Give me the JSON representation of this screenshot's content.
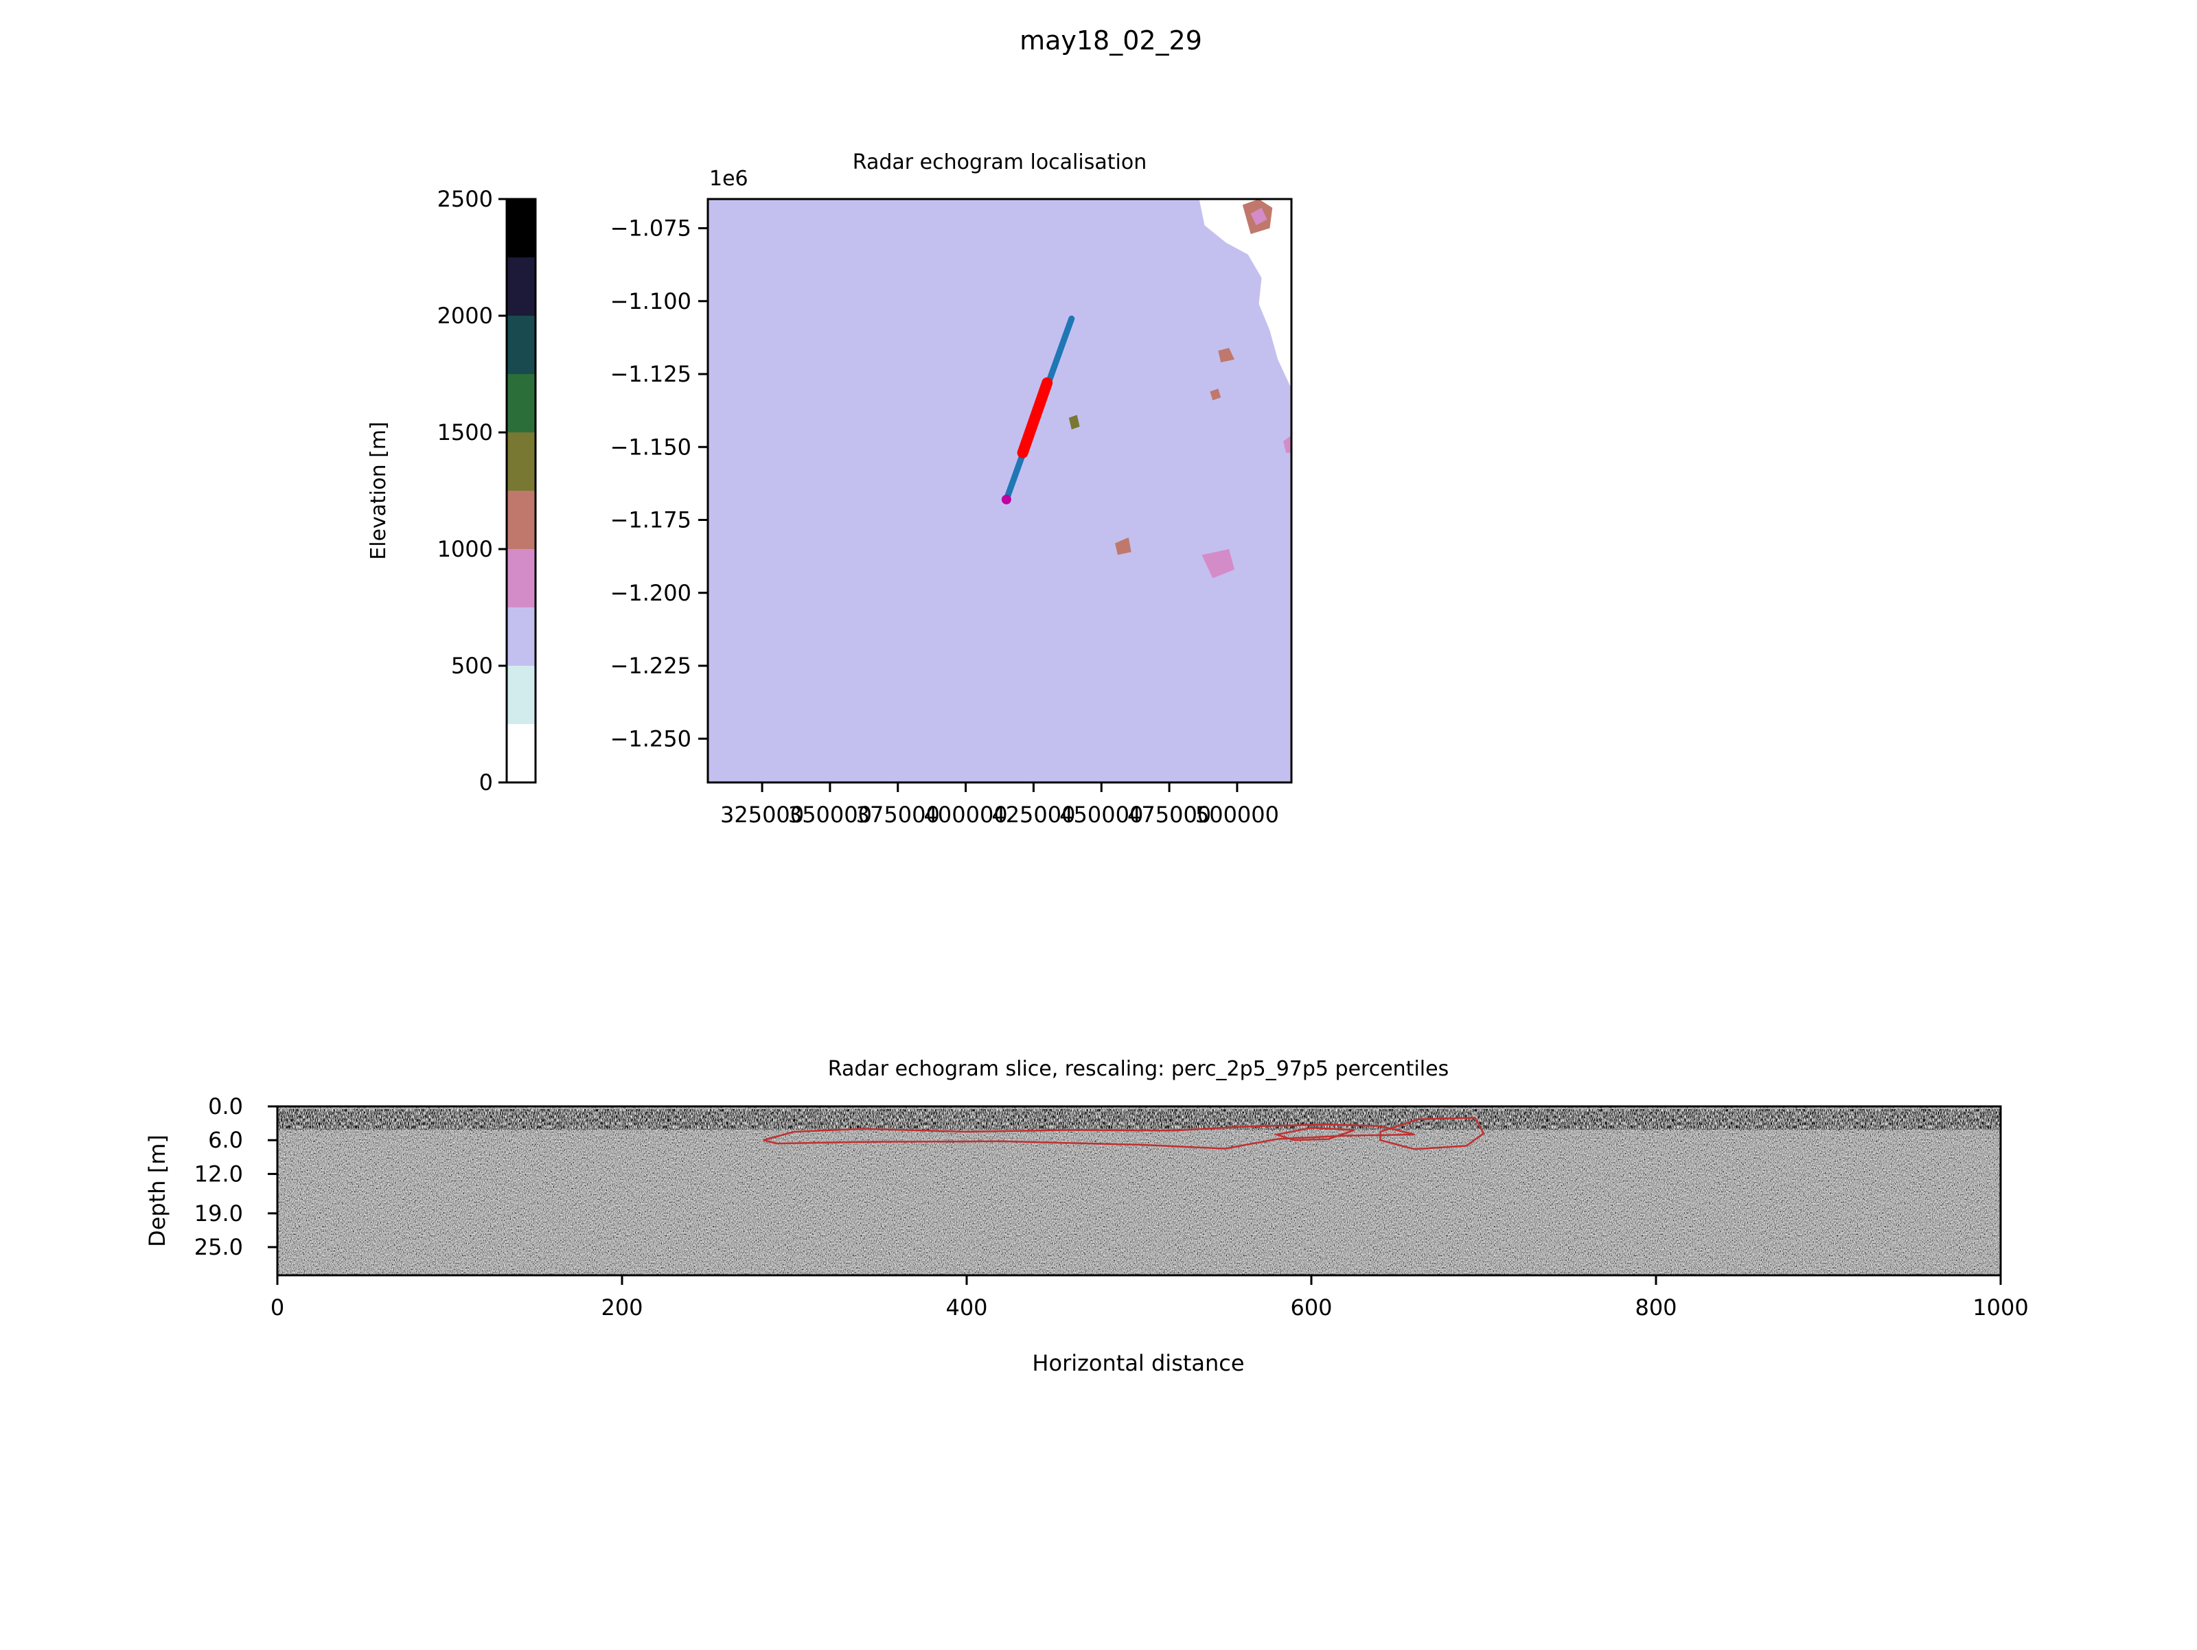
{
  "figure": {
    "title": "may18_02_29"
  },
  "colors": {
    "axis": "#000000",
    "track_line": "#1f77b4",
    "track_highlight": "#ff0000",
    "start_marker": "#c000a0",
    "echogram_bg": "#7d7d7d",
    "contour": "#c03030",
    "colorbar_bands": [
      "#ffffff",
      "#d2ecee",
      "#c3c0f0",
      "#d48cc8",
      "#c0786c",
      "#787832",
      "#2c6e3a",
      "#184a50",
      "#1c1a38",
      "#000000"
    ]
  },
  "chart_data": [
    {
      "type": "colorbar",
      "ylabel": "Elevation [m]",
      "ylim": [
        0,
        2500
      ],
      "ticks": [
        0,
        500,
        1000,
        1500,
        2000,
        2500
      ],
      "tick_labels": [
        "0",
        "500",
        "1000",
        "1500",
        "2000",
        "2500"
      ],
      "levels": [
        0,
        250,
        500,
        750,
        1000,
        1250,
        1500,
        1750,
        2000,
        2250,
        2500
      ]
    },
    {
      "type": "heatmap",
      "title": "Radar echogram localisation",
      "offset_text": "1e6",
      "xlim": [
        305000,
        520000
      ],
      "ylim": [
        -1265000,
        -1065000
      ],
      "xticks": [
        325000,
        350000,
        375000,
        400000,
        425000,
        450000,
        475000,
        500000
      ],
      "xtick_labels": [
        "325000",
        "350000",
        "375000",
        "400000",
        "425000",
        "450000",
        "475000",
        "500000"
      ],
      "yticks": [
        -1075000,
        -1100000,
        -1125000,
        -1150000,
        -1175000,
        -1200000,
        -1225000,
        -1250000
      ],
      "ytick_labels": [
        "−1.075",
        "−1.100",
        "−1.125",
        "−1.150",
        "−1.175",
        "−1.200",
        "−1.225",
        "−1.250"
      ],
      "track": {
        "x": [
          415000,
          439000
        ],
        "y": [
          -1168000,
          -1106000
        ]
      },
      "track_highlight": {
        "x": [
          421000,
          430000
        ],
        "y": [
          -1152000,
          -1128000
        ]
      },
      "start_point": {
        "x": 415000,
        "y": -1168000
      },
      "elevation_zones": [
        {
          "level": 1500,
          "points": [
            [
              305000,
              -1065000
            ],
            [
              329000,
              -1065000
            ],
            [
              325000,
              -1085000
            ],
            [
              335000,
              -1105000
            ],
            [
              344000,
              -1125000
            ],
            [
              356000,
              -1145000
            ],
            [
              365000,
              -1160000
            ],
            [
              374000,
              -1178000
            ],
            [
              381000,
              -1192000
            ],
            [
              386000,
              -1205000
            ],
            [
              390000,
              -1213000
            ],
            [
              400000,
              -1220000
            ],
            [
              412000,
              -1224000
            ],
            [
              428000,
              -1226000
            ],
            [
              437000,
              -1233000
            ],
            [
              447000,
              -1242000
            ],
            [
              450000,
              -1252000
            ],
            [
              452000,
              -1265000
            ],
            [
              305000,
              -1265000
            ]
          ]
        },
        {
          "level": 1250,
          "points": [
            [
              305000,
              -1065000
            ],
            [
              369000,
              -1065000
            ],
            [
              368000,
              -1080000
            ],
            [
              371000,
              -1097000
            ],
            [
              378000,
              -1112000
            ],
            [
              387000,
              -1122000
            ],
            [
              395000,
              -1132000
            ],
            [
              401000,
              -1146000
            ],
            [
              407000,
              -1160000
            ],
            [
              415000,
              -1172000
            ],
            [
              425000,
              -1182000
            ],
            [
              438000,
              -1190000
            ],
            [
              447000,
              -1198000
            ],
            [
              452000,
              -1207000
            ],
            [
              461000,
              -1215000
            ],
            [
              466000,
              -1226000
            ],
            [
              468000,
              -1238000
            ],
            [
              467000,
              -1250000
            ],
            [
              467000,
              -1265000
            ],
            [
              305000,
              -1265000
            ]
          ]
        },
        {
          "level": 1000,
          "points": [
            [
              305000,
              -1065000
            ],
            [
              398000,
              -1065000
            ],
            [
              396000,
              -1080000
            ],
            [
              398000,
              -1093000
            ],
            [
              405000,
              -1106000
            ],
            [
              416000,
              -1118000
            ],
            [
              427000,
              -1127000
            ],
            [
              436000,
              -1139000
            ],
            [
              442000,
              -1151000
            ],
            [
              447000,
              -1163000
            ],
            [
              453000,
              -1175000
            ],
            [
              460000,
              -1182000
            ],
            [
              465000,
              -1192000
            ],
            [
              468000,
              -1204000
            ],
            [
              471000,
              -1214000
            ],
            [
              480000,
              -1222000
            ],
            [
              488000,
              -1230000
            ],
            [
              494000,
              -1240000
            ],
            [
              493000,
              -1252000
            ],
            [
              490000,
              -1265000
            ],
            [
              305000,
              -1265000
            ]
          ]
        },
        {
          "level": 750,
          "points": [
            [
              305000,
              -1065000
            ],
            [
              446000,
              -1065000
            ],
            [
              446000,
              -1076000
            ],
            [
              455000,
              -1082000
            ],
            [
              466000,
              -1090000
            ],
            [
              471000,
              -1098000
            ],
            [
              474000,
              -1108000
            ],
            [
              478000,
              -1116000
            ],
            [
              487000,
              -1124000
            ],
            [
              499000,
              -1131000
            ],
            [
              505000,
              -1144000
            ],
            [
              506000,
              -1162000
            ],
            [
              503000,
              -1182000
            ],
            [
              499000,
              -1194000
            ],
            [
              490000,
              -1198000
            ],
            [
              483000,
              -1205000
            ],
            [
              482000,
              -1218000
            ],
            [
              485000,
              -1232000
            ],
            [
              487000,
              -1244000
            ],
            [
              486000,
              -1255000
            ],
            [
              485000,
              -1265000
            ],
            [
              305000,
              -1265000
            ]
          ]
        },
        {
          "level": 500,
          "points": [
            [
              305000,
              -1065000
            ],
            [
              486000,
              -1065000
            ],
            [
              488000,
              -1074000
            ],
            [
              496000,
              -1080000
            ],
            [
              504000,
              -1084000
            ],
            [
              509000,
              -1092000
            ],
            [
              508000,
              -1101000
            ],
            [
              512000,
              -1110000
            ],
            [
              515000,
              -1120000
            ],
            [
              520000,
              -1130000
            ],
            [
              520000,
              -1265000
            ],
            [
              305000,
              -1265000
            ]
          ]
        },
        {
          "level": 750,
          "points": [
            [
              487000,
              -1187000
            ],
            [
              497000,
              -1185000
            ],
            [
              499000,
              -1192000
            ],
            [
              491000,
              -1195000
            ]
          ]
        },
        {
          "level": 1000,
          "points": [
            [
              455000,
              -1183000
            ],
            [
              460000,
              -1181000
            ],
            [
              461000,
              -1186000
            ],
            [
              456000,
              -1187000
            ]
          ]
        },
        {
          "level": 1250,
          "points": [
            [
              438000,
              -1140000
            ],
            [
              441000,
              -1139000
            ],
            [
              442000,
              -1143000
            ],
            [
              439000,
              -1144000
            ]
          ]
        }
      ],
      "peaks": [
        {
          "level": 1000,
          "points": [
            [
              502000,
              -1067000
            ],
            [
              508000,
              -1065000
            ],
            [
              513000,
              -1068000
            ],
            [
              512000,
              -1075000
            ],
            [
              505000,
              -1077000
            ]
          ]
        },
        {
          "level": 750,
          "points": [
            [
              505000,
              -1070000
            ],
            [
              509000,
              -1068000
            ],
            [
              511000,
              -1072000
            ],
            [
              507000,
              -1074000
            ]
          ]
        },
        {
          "level": 1000,
          "points": [
            [
              493000,
              -1117000
            ],
            [
              497000,
              -1116000
            ],
            [
              499000,
              -1120000
            ],
            [
              494000,
              -1121000
            ]
          ]
        },
        {
          "level": 1000,
          "points": [
            [
              490000,
              -1131000
            ],
            [
              493000,
              -1130000
            ],
            [
              494000,
              -1133000
            ],
            [
              491000,
              -1134000
            ]
          ]
        },
        {
          "level": 750,
          "points": [
            [
              517000,
              -1148000
            ],
            [
              520000,
              -1146000
            ],
            [
              520000,
              -1152000
            ],
            [
              518000,
              -1152000
            ]
          ]
        }
      ]
    },
    {
      "type": "heatmap",
      "title": "Radar echogram slice, rescaling: perc_2p5_97p5 percentiles",
      "xlabel": "Horizontal distance",
      "ylabel": "Depth [m]",
      "xlim": [
        0,
        1000
      ],
      "xticks": [
        0,
        200,
        400,
        600,
        800,
        1000
      ],
      "xtick_labels": [
        "0",
        "200",
        "400",
        "600",
        "800",
        "1000"
      ],
      "ylim": [
        30,
        0
      ],
      "yticks": [
        0.0,
        6.0,
        12.0,
        19.0,
        25.0
      ],
      "ytick_labels": [
        "0.0",
        "6.0",
        "12.0",
        "19.0",
        "25.0"
      ],
      "contours": [
        {
          "points": [
            [
              282,
              6.0
            ],
            [
              300,
              4.5
            ],
            [
              340,
              4.0
            ],
            [
              400,
              4.5
            ],
            [
              460,
              4.2
            ],
            [
              520,
              4.3
            ],
            [
              560,
              3.6
            ],
            [
              610,
              3.2
            ],
            [
              640,
              3.5
            ],
            [
              660,
              5.0
            ],
            [
              620,
              5.2
            ],
            [
              580,
              5.8
            ],
            [
              550,
              7.5
            ],
            [
              500,
              6.8
            ],
            [
              420,
              6.2
            ],
            [
              340,
              6.3
            ],
            [
              290,
              6.6
            ]
          ]
        },
        {
          "points": [
            [
              640,
              4.5
            ],
            [
              662,
              2.3
            ],
            [
              695,
              2.0
            ],
            [
              700,
              4.8
            ],
            [
              690,
              7.0
            ],
            [
              660,
              7.6
            ],
            [
              640,
              6.0
            ]
          ]
        },
        {
          "points": [
            [
              580,
              5.0
            ],
            [
              600,
              3.8
            ],
            [
              625,
              4.2
            ],
            [
              610,
              5.8
            ],
            [
              590,
              6.0
            ]
          ]
        }
      ]
    }
  ]
}
